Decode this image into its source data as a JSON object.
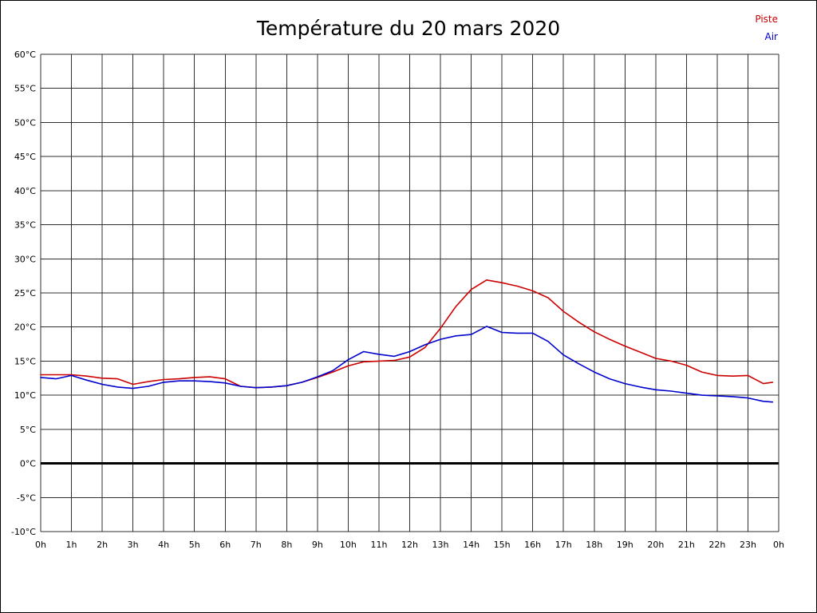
{
  "title": "Température du 20 mars 2020",
  "legend": [
    {
      "label": "Piste",
      "color": "#cc0000"
    },
    {
      "label": "Air",
      "color": "#0000cc"
    }
  ],
  "chart_data": {
    "type": "line",
    "title": "Température du 20 mars 2020",
    "xlabel": "",
    "ylabel": "",
    "xlim": [
      0,
      24
    ],
    "ylim": [
      -10,
      60
    ],
    "grid": true,
    "legend_position": "top-right",
    "x_tick_labels": [
      "0h",
      "1h",
      "2h",
      "3h",
      "4h",
      "5h",
      "6h",
      "7h",
      "8h",
      "9h",
      "10h",
      "11h",
      "12h",
      "13h",
      "14h",
      "15h",
      "16h",
      "17h",
      "18h",
      "19h",
      "20h",
      "21h",
      "22h",
      "23h",
      "0h"
    ],
    "y_ticks": [
      60,
      55,
      50,
      45,
      40,
      35,
      30,
      25,
      20,
      15,
      10,
      5,
      0,
      -5,
      -10
    ],
    "y_tick_labels": [
      "60°C",
      "55°C",
      "50°C",
      "45°C",
      "40°C",
      "35°C",
      "30°C",
      "25°C",
      "20°C",
      "15°C",
      "10°C",
      "5°C",
      "0°C",
      "-5°C",
      "-10°C"
    ],
    "zero_line": 0,
    "x": [
      0,
      0.5,
      1,
      1.5,
      2,
      2.5,
      3,
      3.5,
      4,
      4.5,
      5,
      5.5,
      6,
      6.5,
      7,
      7.5,
      8,
      8.5,
      9,
      9.5,
      10,
      10.5,
      11,
      11.5,
      12,
      12.5,
      13,
      13.5,
      14,
      14.5,
      15,
      15.5,
      16,
      16.5,
      17,
      17.5,
      18,
      18.5,
      19,
      19.5,
      20,
      20.5,
      21,
      21.5,
      22,
      22.5,
      23,
      23.5,
      23.8
    ],
    "series": [
      {
        "name": "Piste",
        "color": "#cc0000",
        "values": [
          13,
          13,
          13,
          12.8,
          12.5,
          12.4,
          11.6,
          12,
          12.3,
          12.4,
          12.6,
          12.7,
          12.4,
          11.3,
          11.1,
          11.2,
          11.4,
          11.9,
          12.6,
          13.4,
          14.3,
          14.9,
          15,
          15.1,
          15.6,
          17,
          19.8,
          23,
          25.5,
          26.9,
          26.5,
          26,
          25.3,
          24.3,
          22.3,
          20.7,
          19.3,
          18.2,
          17.2,
          16.3,
          15.4,
          15,
          14.4,
          13.4,
          12.9,
          12.8,
          12.9,
          11.7,
          11.9
        ]
      },
      {
        "name": "Air",
        "color": "#0000cc",
        "values": [
          12.6,
          12.4,
          12.9,
          12.2,
          11.6,
          11.2,
          11,
          11.3,
          11.9,
          12.1,
          12.1,
          12,
          11.8,
          11.3,
          11.1,
          11.2,
          11.4,
          11.9,
          12.7,
          13.6,
          15.2,
          16.4,
          16,
          15.7,
          16.4,
          17.4,
          18.2,
          18.7,
          18.9,
          20.1,
          19.2,
          19.1,
          19.1,
          17.9,
          15.9,
          14.6,
          13.4,
          12.4,
          11.7,
          11.2,
          10.8,
          10.6,
          10.3,
          10,
          9.9,
          9.8,
          9.6,
          9.1,
          9
        ]
      }
    ]
  }
}
